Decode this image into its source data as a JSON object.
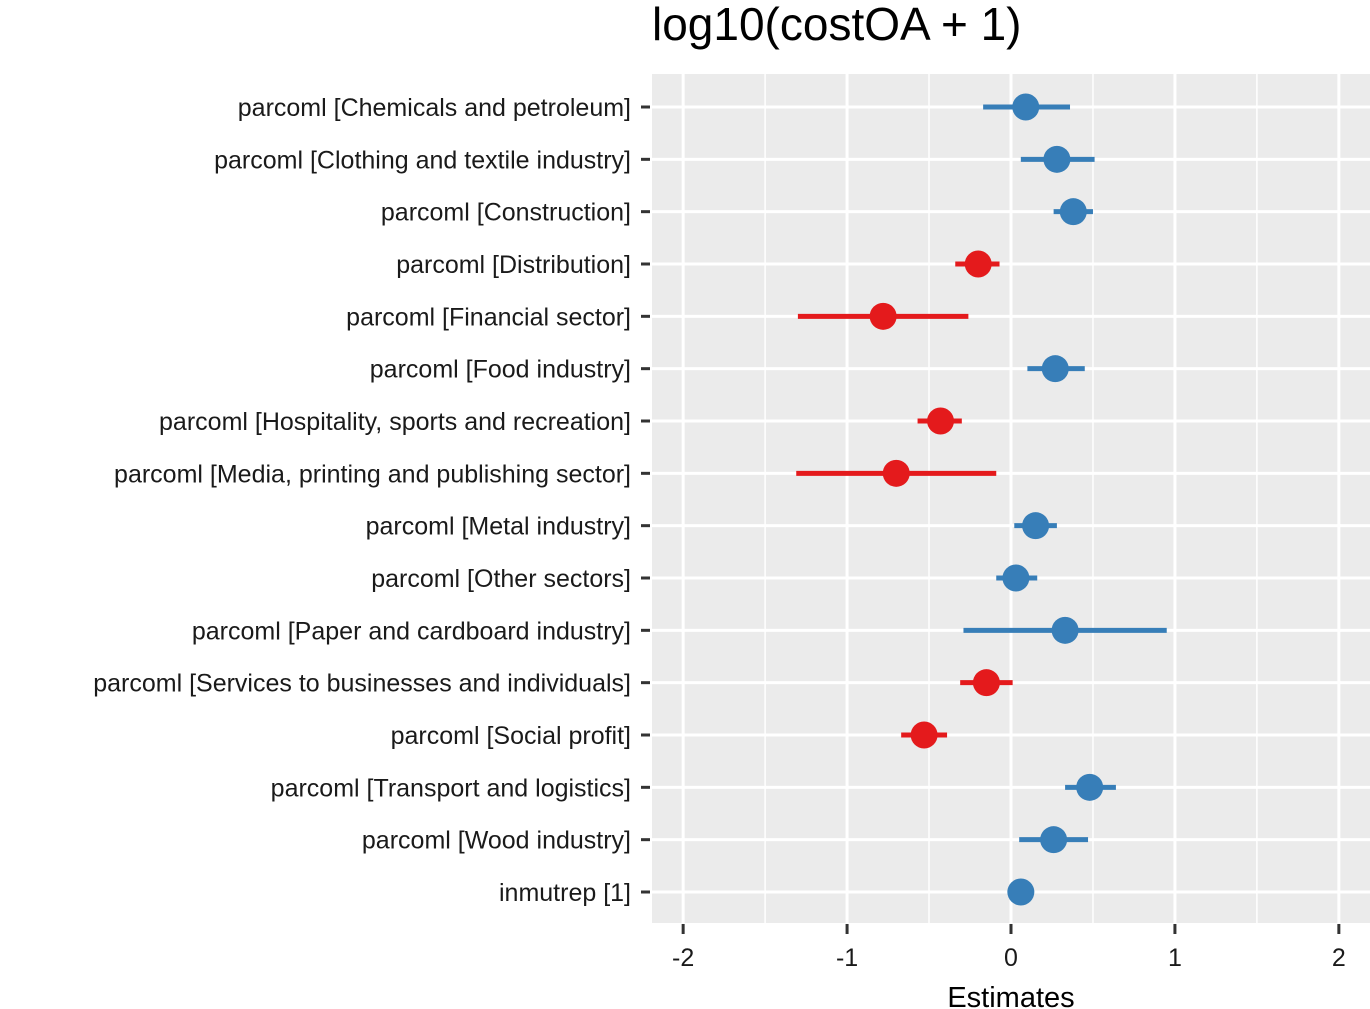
{
  "chart_data": {
    "type": "scatter",
    "subtype": "forest-plot",
    "title": "log10(costOA + 1)",
    "xlabel": "Estimates",
    "ylabel": "",
    "xlim": [
      -2.19,
      2.19
    ],
    "xticks": [
      -2,
      -1,
      0,
      1,
      2
    ],
    "xtick_labels": [
      "-2",
      "-1",
      "0",
      "1",
      "2"
    ],
    "grid": true,
    "legend": "none",
    "colors": {
      "positive": "#377EB8",
      "negative": "#E41A1C",
      "panel_background": "#EBEBEB",
      "grid": "#FFFFFF"
    },
    "terms": [
      {
        "label": "parcoml [Chemicals and petroleum]",
        "estimate": 0.09,
        "ci_low": -0.17,
        "ci_high": 0.36
      },
      {
        "label": "parcoml [Clothing and textile industry]",
        "estimate": 0.28,
        "ci_low": 0.06,
        "ci_high": 0.51
      },
      {
        "label": "parcoml [Construction]",
        "estimate": 0.38,
        "ci_low": 0.26,
        "ci_high": 0.5
      },
      {
        "label": "parcoml [Distribution]",
        "estimate": -0.2,
        "ci_low": -0.34,
        "ci_high": -0.07
      },
      {
        "label": "parcoml [Financial sector]",
        "estimate": -0.78,
        "ci_low": -1.3,
        "ci_high": -0.26
      },
      {
        "label": "parcoml [Food industry]",
        "estimate": 0.27,
        "ci_low": 0.1,
        "ci_high": 0.45
      },
      {
        "label": "parcoml [Hospitality, sports and recreation]",
        "estimate": -0.43,
        "ci_low": -0.57,
        "ci_high": -0.3
      },
      {
        "label": "parcoml [Media, printing and publishing sector]",
        "estimate": -0.7,
        "ci_low": -1.31,
        "ci_high": -0.09
      },
      {
        "label": "parcoml [Metal industry]",
        "estimate": 0.15,
        "ci_low": 0.02,
        "ci_high": 0.28
      },
      {
        "label": "parcoml [Other sectors]",
        "estimate": 0.03,
        "ci_low": -0.09,
        "ci_high": 0.16
      },
      {
        "label": "parcoml [Paper and cardboard industry]",
        "estimate": 0.33,
        "ci_low": -0.29,
        "ci_high": 0.95
      },
      {
        "label": "parcoml [Services to businesses and individuals]",
        "estimate": -0.15,
        "ci_low": -0.31,
        "ci_high": 0.01
      },
      {
        "label": "parcoml [Social profit]",
        "estimate": -0.53,
        "ci_low": -0.67,
        "ci_high": -0.39
      },
      {
        "label": "parcoml [Transport and logistics]",
        "estimate": 0.48,
        "ci_low": 0.33,
        "ci_high": 0.64
      },
      {
        "label": "parcoml [Wood industry]",
        "estimate": 0.26,
        "ci_low": 0.05,
        "ci_high": 0.47
      },
      {
        "label": "inmutrep [1]",
        "estimate": 0.06,
        "ci_low": 0.04,
        "ci_high": 0.08
      }
    ]
  }
}
